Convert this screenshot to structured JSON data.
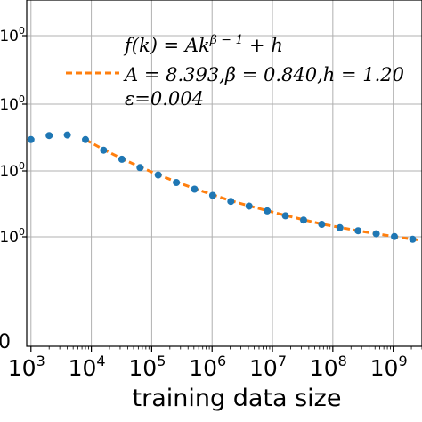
{
  "chart_data": {
    "type": "scatter",
    "title": "",
    "xlabel": "training data size",
    "ylabel": "",
    "xscale": "log",
    "yscale": "log",
    "xlim": [
      850,
      3000000000
    ],
    "ylim": [
      1.0,
      2.2
    ],
    "grid": true,
    "legend_position": "top-right",
    "x_tick_labels": [
      "10^3",
      "10^4",
      "10^5",
      "10^6",
      "10^7",
      "10^8",
      "10^9"
    ],
    "x_tick_values": [
      1000,
      10000,
      100000,
      1000000,
      10000000,
      100000000,
      1000000000
    ],
    "y_tick_labels": [
      "0",
      "10^0",
      "10^0",
      "10^0",
      "10^0"
    ],
    "series": [
      {
        "kind": "points",
        "color": "#1f77b4",
        "x": [
          1000,
          2000,
          4000,
          8000,
          16000,
          32000,
          64000,
          128000,
          256000,
          512000,
          1024000,
          2048000,
          4096000,
          8192000,
          16384000,
          32768000,
          65536000,
          131072000,
          262144000,
          524288000,
          1048576000,
          2097152000
        ],
        "y": [
          1.601,
          1.616,
          1.618,
          1.601,
          1.563,
          1.531,
          1.502,
          1.477,
          1.452,
          1.43,
          1.41,
          1.391,
          1.376,
          1.361,
          1.346,
          1.333,
          1.32,
          1.31,
          1.301,
          1.292,
          1.284,
          1.276
        ]
      },
      {
        "kind": "fit-line",
        "color": "#ff7f0e",
        "x": [
          8000,
          16000,
          32000,
          64000,
          128000,
          256000,
          512000,
          1024000,
          2048000,
          4096000,
          8192000,
          16384000,
          32768000,
          65536000,
          131072000,
          262144000,
          524288000,
          1048576000,
          2097152000,
          2900000000
        ],
        "y": [
          1.601,
          1.565,
          1.533,
          1.504,
          1.478,
          1.454,
          1.432,
          1.412,
          1.393,
          1.377,
          1.362,
          1.347,
          1.334,
          1.321,
          1.311,
          1.301,
          1.292,
          1.284,
          1.276,
          1.273
        ]
      }
    ],
    "legend": {
      "formula": "f(k) = Ak^{β−1} + h",
      "formula_main": "f(k) = Ak",
      "formula_sup": "β − 1",
      "formula_tail": " + h",
      "entry": "A = 8.393,β = 0.840,h = 1.20",
      "epsilon": "ε=0.004"
    }
  }
}
